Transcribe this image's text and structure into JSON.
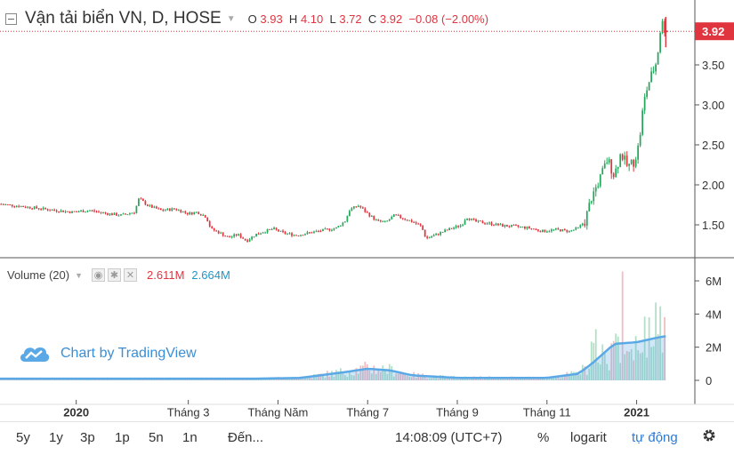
{
  "header": {
    "title": "Vận tải biển VN, D, HOSE",
    "o_label": "O",
    "o_value": "3.93",
    "h_label": "H",
    "h_value": "4.10",
    "l_label": "L",
    "l_value": "3.72",
    "c_label": "C",
    "c_value": "3.92",
    "change": "−0.08 (−2.00%)"
  },
  "price_tag": "3.92",
  "volume": {
    "label": "Volume (20)",
    "value1": "2.611M",
    "value2": "2.664M"
  },
  "watermark": "Chart by TradingView",
  "footer": {
    "range_5y": "5y",
    "range_1y": "1y",
    "range_3m": "3p",
    "range_1m": "1p",
    "range_5d": "5n",
    "range_1d": "1n",
    "goto": "Đến...",
    "time": "14:08:09 (UTC+7)",
    "percent": "%",
    "log": "logarit",
    "auto": "tự động"
  },
  "colors": {
    "up": "#26a65b",
    "down": "#e0343f",
    "volume_avg": "#5aa9e6",
    "accent": "#2c7ad4"
  },
  "chart_data": {
    "type": "candlestick",
    "price_axis": {
      "ticks": [
        1.5,
        2.0,
        2.5,
        3.0,
        3.5
      ],
      "tick_labels": [
        "1.50",
        "2.00",
        "2.50",
        "3.00",
        "3.50"
      ],
      "range": [
        1.2,
        4.2
      ]
    },
    "volume_axis": {
      "ticks": [
        0,
        2,
        4,
        6
      ],
      "tick_labels": [
        "0",
        "2M",
        "4M",
        "6M"
      ],
      "range": [
        0,
        6.7
      ]
    },
    "x_labels": [
      "2020",
      "Tháng 3",
      "Tháng Năm",
      "Tháng 7",
      "Tháng 9",
      "Tháng 11",
      "2021"
    ],
    "x_label_positions": [
      0.0,
      2.5,
      4.5,
      6.5,
      8.5,
      10.5,
      12.5
    ],
    "x_range": [
      -1.7,
      13.6
    ],
    "close_path": [
      [
        -1.7,
        1.76
      ],
      [
        -1.2,
        1.73
      ],
      [
        -0.6,
        1.69
      ],
      [
        -0.1,
        1.66
      ],
      [
        0.3,
        1.68
      ],
      [
        0.7,
        1.64
      ],
      [
        1.0,
        1.62
      ],
      [
        1.3,
        1.66
      ],
      [
        1.4,
        1.83
      ],
      [
        1.6,
        1.74
      ],
      [
        1.9,
        1.68
      ],
      [
        2.2,
        1.7
      ],
      [
        2.5,
        1.64
      ],
      [
        2.7,
        1.66
      ],
      [
        2.9,
        1.6
      ],
      [
        3.0,
        1.45
      ],
      [
        3.2,
        1.4
      ],
      [
        3.4,
        1.34
      ],
      [
        3.6,
        1.38
      ],
      [
        3.8,
        1.3
      ],
      [
        4.0,
        1.38
      ],
      [
        4.2,
        1.42
      ],
      [
        4.4,
        1.45
      ],
      [
        4.6,
        1.4
      ],
      [
        4.9,
        1.37
      ],
      [
        5.2,
        1.4
      ],
      [
        5.5,
        1.43
      ],
      [
        5.8,
        1.46
      ],
      [
        6.0,
        1.55
      ],
      [
        6.1,
        1.69
      ],
      [
        6.3,
        1.74
      ],
      [
        6.5,
        1.64
      ],
      [
        6.7,
        1.55
      ],
      [
        6.9,
        1.53
      ],
      [
        7.1,
        1.62
      ],
      [
        7.3,
        1.58
      ],
      [
        7.5,
        1.54
      ],
      [
        7.7,
        1.48
      ],
      [
        7.8,
        1.33
      ],
      [
        8.0,
        1.37
      ],
      [
        8.2,
        1.42
      ],
      [
        8.4,
        1.46
      ],
      [
        8.6,
        1.5
      ],
      [
        8.7,
        1.6
      ],
      [
        8.9,
        1.54
      ],
      [
        9.2,
        1.52
      ],
      [
        9.5,
        1.49
      ],
      [
        9.8,
        1.48
      ],
      [
        10.1,
        1.46
      ],
      [
        10.4,
        1.42
      ],
      [
        10.7,
        1.44
      ],
      [
        11.0,
        1.42
      ],
      [
        11.2,
        1.46
      ],
      [
        11.35,
        1.55
      ],
      [
        11.5,
        1.85
      ],
      [
        11.7,
        2.1
      ],
      [
        11.85,
        2.32
      ],
      [
        12.0,
        2.12
      ],
      [
        12.15,
        2.4
      ],
      [
        12.3,
        2.22
      ],
      [
        12.45,
        2.3
      ],
      [
        12.55,
        2.5
      ],
      [
        12.65,
        3.0
      ],
      [
        12.75,
        3.25
      ],
      [
        12.85,
        3.4
      ],
      [
        12.95,
        3.55
      ],
      [
        13.05,
        4.05
      ],
      [
        13.15,
        3.92
      ]
    ],
    "volume_profile": [
      [
        -1.7,
        0.1
      ],
      [
        4.0,
        0.1
      ],
      [
        5.0,
        0.15
      ],
      [
        6.0,
        0.5
      ],
      [
        6.5,
        0.7
      ],
      [
        7.0,
        0.6
      ],
      [
        7.5,
        0.3
      ],
      [
        8.5,
        0.15
      ],
      [
        10.5,
        0.15
      ],
      [
        11.2,
        0.4
      ],
      [
        11.5,
        1.0
      ],
      [
        12.0,
        2.2
      ],
      [
        12.5,
        2.3
      ],
      [
        13.0,
        2.6
      ],
      [
        13.15,
        2.66
      ]
    ]
  }
}
